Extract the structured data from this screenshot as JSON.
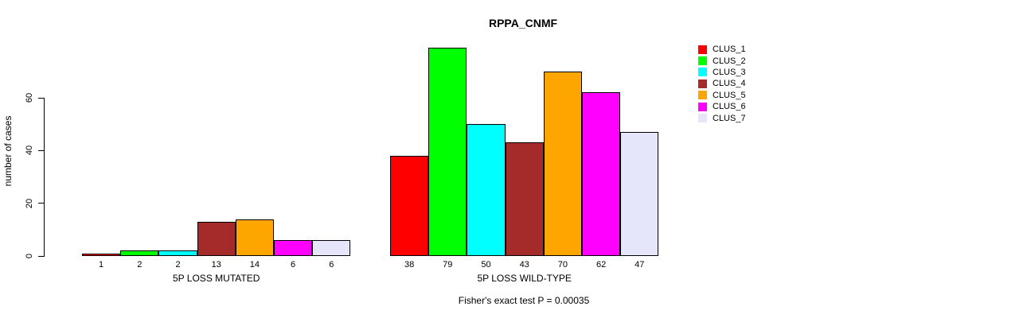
{
  "chart_data": {
    "type": "bar",
    "title": "RPPA_CNMF",
    "ylabel": "number of cases",
    "xlabel": "",
    "yticks": [
      0,
      20,
      40,
      60
    ],
    "axis_tick_max": 60,
    "ylim": [
      0,
      79
    ],
    "grid": false,
    "legend_position": "right",
    "clusters": [
      "CLUS_1",
      "CLUS_2",
      "CLUS_3",
      "CLUS_4",
      "CLUS_5",
      "CLUS_6",
      "CLUS_7"
    ],
    "colors": [
      "#FF0000",
      "#00FF00",
      "#00FFFF",
      "#A52A2A",
      "#FFA500",
      "#FF00FF",
      "#E6E6FA"
    ],
    "groups": [
      {
        "label": "5P LOSS MUTATED",
        "values": [
          1,
          2,
          2,
          13,
          14,
          6,
          6
        ]
      },
      {
        "label": "5P LOSS WILD-TYPE",
        "values": [
          38,
          79,
          50,
          43,
          70,
          62,
          47
        ]
      }
    ],
    "annotation": "Fisher's exact test P = 0.00035"
  }
}
